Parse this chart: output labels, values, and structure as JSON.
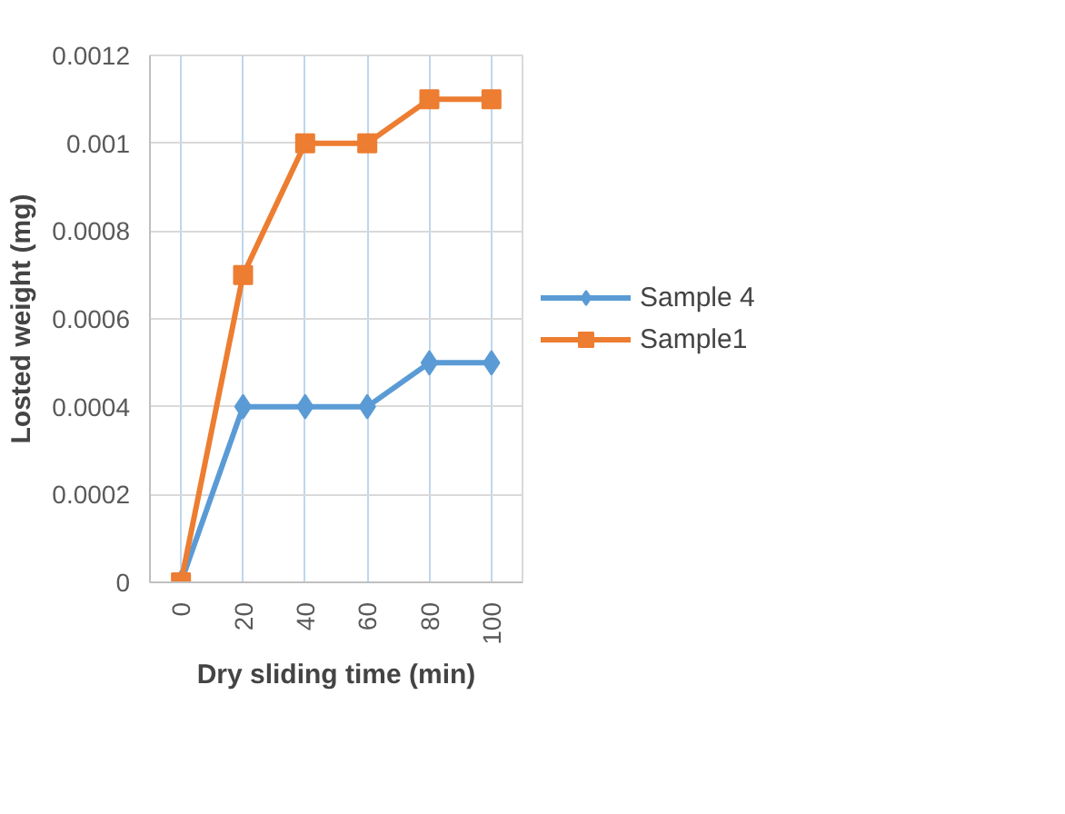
{
  "chart_data": {
    "type": "line",
    "xlabel": "Dry sliding time (min)",
    "ylabel": "Losted weight (mg)",
    "categories": [
      "0",
      "20",
      "40",
      "60",
      "80",
      "100"
    ],
    "series": [
      {
        "name": "Sample 4",
        "color": "#5b9bd5",
        "marker": "diamond",
        "values": [
          0,
          0.0004,
          0.0004,
          0.0004,
          0.0005,
          0.0005
        ]
      },
      {
        "name": "Sample1",
        "color": "#ed7d31",
        "marker": "square",
        "values": [
          0,
          0.0007,
          0.001,
          0.001,
          0.0011,
          0.0011
        ]
      }
    ],
    "ylim": [
      0,
      0.0012
    ],
    "yticks": [
      0,
      0.0002,
      0.0004,
      0.0006,
      0.0008,
      0.001,
      0.0012
    ],
    "grid": true,
    "legend": "right",
    "line_style": "solid"
  }
}
